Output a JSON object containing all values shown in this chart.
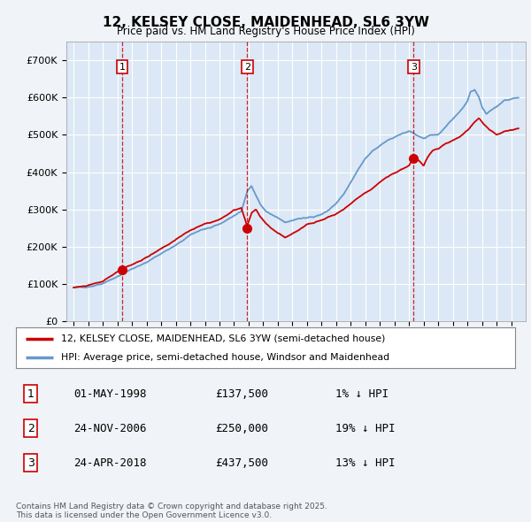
{
  "title": "12, KELSEY CLOSE, MAIDENHEAD, SL6 3YW",
  "subtitle": "Price paid vs. HM Land Registry's House Price Index (HPI)",
  "ylim": [
    0,
    750000
  ],
  "yticks": [
    0,
    100000,
    200000,
    300000,
    400000,
    500000,
    600000,
    700000
  ],
  "ytick_labels": [
    "£0",
    "£100K",
    "£200K",
    "£300K",
    "£400K",
    "£500K",
    "£600K",
    "£700K"
  ],
  "sale_dates": [
    1998.33,
    2006.9,
    2018.32
  ],
  "sale_prices": [
    137500,
    250000,
    437500
  ],
  "sale_labels": [
    "1",
    "2",
    "3"
  ],
  "vline_color": "#cc0000",
  "legend_line1": "12, KELSEY CLOSE, MAIDENHEAD, SL6 3YW (semi-detached house)",
  "legend_line2": "HPI: Average price, semi-detached house, Windsor and Maidenhead",
  "legend_line1_color": "#cc0000",
  "legend_line2_color": "#6699cc",
  "transaction_table": [
    {
      "num": "1",
      "date": "01-MAY-1998",
      "price": "£137,500",
      "hpi": "1% ↓ HPI"
    },
    {
      "num": "2",
      "date": "24-NOV-2006",
      "price": "£250,000",
      "hpi": "19% ↓ HPI"
    },
    {
      "num": "3",
      "date": "24-APR-2018",
      "price": "£437,500",
      "hpi": "13% ↓ HPI"
    }
  ],
  "footer": "Contains HM Land Registry data © Crown copyright and database right 2025.\nThis data is licensed under the Open Government Licence v3.0.",
  "bg_color": "#f0f4f8",
  "plot_bg_color": "#dce8f5",
  "grid_color": "#ffffff",
  "hpi_color": "#6699cc",
  "red_color": "#cc0000"
}
